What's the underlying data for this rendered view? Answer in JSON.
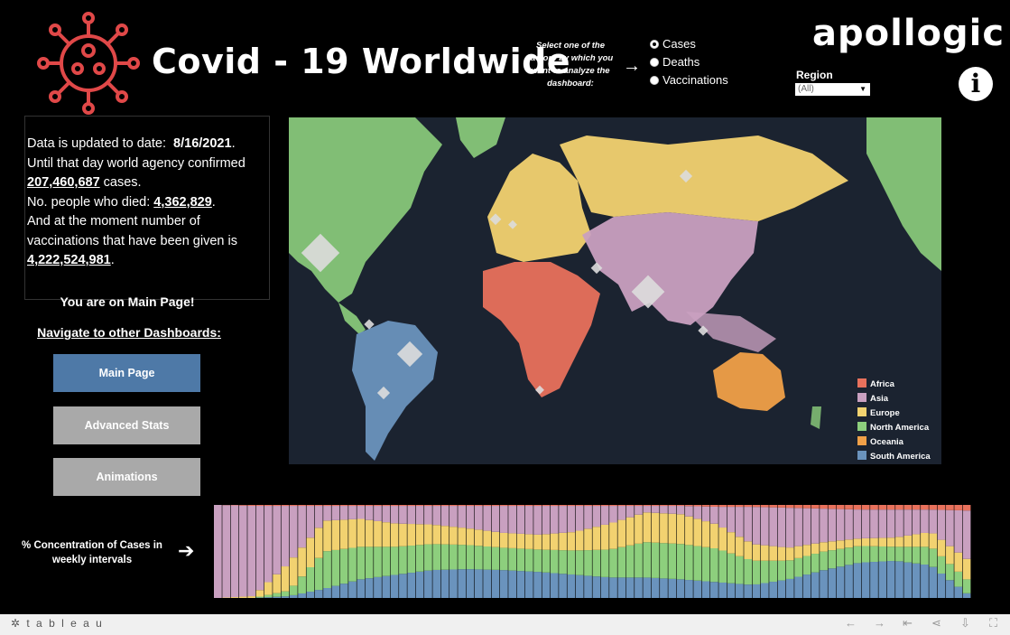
{
  "header": {
    "title": "Covid - 19 Worldwide",
    "factor_prompt": "Select one of the factors by which you want to analyze the dashboard:",
    "factors": [
      {
        "label": "Cases",
        "selected": true
      },
      {
        "label": "Deaths",
        "selected": false
      },
      {
        "label": "Vaccinations",
        "selected": false
      }
    ],
    "logo_text": "apollogic",
    "region_label": "Region",
    "region_value": "(All)",
    "info_icon": "i"
  },
  "summary": {
    "line1": "Data is updated to date:",
    "date": "8/16/2021",
    "line2": "Until that day world agency confirmed",
    "cases": "207,460,687",
    "cases_suffix": "cases.",
    "died_label": "No. people who died:",
    "deaths": "4,362,829",
    "vacc_text": "And at the moment number of vaccinations that have been given is",
    "vaccinations": "4,222,524,981"
  },
  "nav": {
    "on_page": "You are on Main Page!",
    "navigate": "Navigate to other Dashboards:",
    "buttons": [
      "Main Page",
      "Advanced Stats",
      "Animations"
    ]
  },
  "legend": [
    {
      "name": "Africa",
      "color": "#e8715c"
    },
    {
      "name": "Asia",
      "color": "#c9a0c0"
    },
    {
      "name": "Europe",
      "color": "#f2d270"
    },
    {
      "name": "North America",
      "color": "#8dcf7d"
    },
    {
      "name": "Oceania",
      "color": "#f0a048"
    },
    {
      "name": "South America",
      "color": "#6a93bd"
    }
  ],
  "concentration": {
    "label": "% Concentration of Cases in weekly intervals"
  },
  "chart_data": {
    "type": "area",
    "x": [
      1,
      5,
      9,
      13,
      17,
      21,
      25,
      29,
      33,
      37,
      41,
      45,
      49,
      53,
      57,
      61,
      65,
      69,
      73,
      77,
      81,
      85
    ],
    "series": [
      {
        "name": "South America",
        "values": [
          0,
          0,
          2,
          10,
          20,
          25,
          30,
          31,
          30,
          28,
          25,
          22,
          22,
          20,
          17,
          14,
          20,
          30,
          38,
          40,
          35,
          5
        ]
      },
      {
        "name": "North America",
        "values": [
          0,
          0,
          6,
          40,
          35,
          30,
          28,
          26,
          24,
          24,
          26,
          30,
          38,
          38,
          36,
          26,
          20,
          20,
          18,
          15,
          20,
          15
        ]
      },
      {
        "name": "Europe",
        "values": [
          0,
          2,
          30,
          33,
          30,
          25,
          21,
          18,
          16,
          16,
          20,
          28,
          32,
          32,
          26,
          18,
          14,
          10,
          8,
          10,
          16,
          22
        ]
      },
      {
        "name": "Asia",
        "values": [
          100,
          97,
          61,
          16,
          14,
          19,
          20,
          24,
          29,
          31,
          28,
          19,
          7,
          9,
          19,
          40,
          43,
          36,
          31,
          30,
          24,
          52
        ]
      },
      {
        "name": "Africa",
        "values": [
          0,
          1,
          1,
          1,
          1,
          1,
          1,
          1,
          1,
          1,
          1,
          1,
          1,
          1,
          2,
          2,
          3,
          4,
          5,
          5,
          5,
          6
        ]
      }
    ],
    "ylim": [
      0,
      100
    ]
  }
}
